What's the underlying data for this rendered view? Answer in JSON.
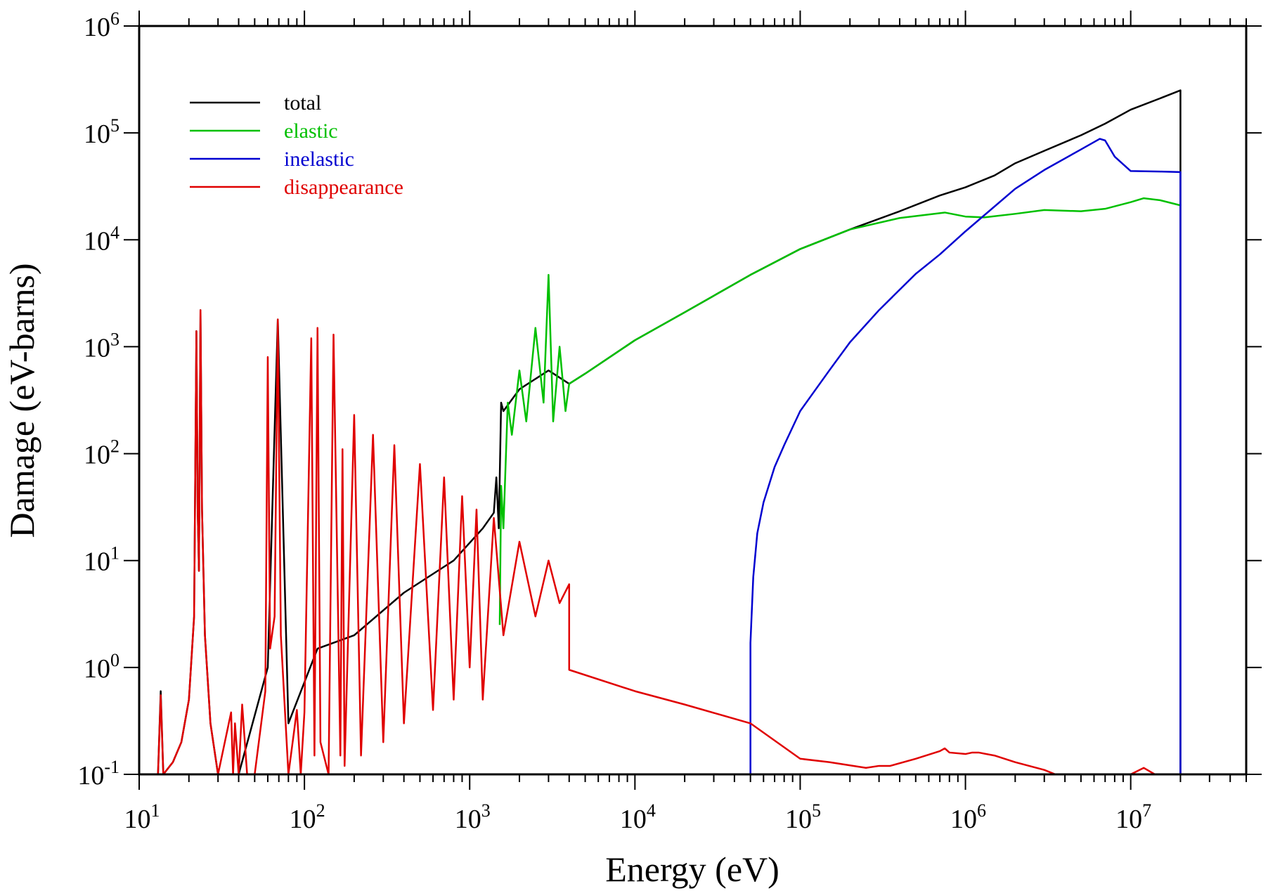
{
  "chart_data": {
    "type": "line",
    "title": "",
    "xlabel": "Energy (eV)",
    "ylabel": "Damage (eV-barns)",
    "xscale": "log",
    "yscale": "log",
    "xlim": [
      10,
      50000000
    ],
    "ylim": [
      0.1,
      1000000
    ],
    "grid": false,
    "legend_position": "top-left",
    "x_tick_labels": [
      {
        "value": 10,
        "base": "10",
        "exp": "1"
      },
      {
        "value": 100,
        "base": "10",
        "exp": "2"
      },
      {
        "value": 1000,
        "base": "10",
        "exp": "3"
      },
      {
        "value": 10000,
        "base": "10",
        "exp": "4"
      },
      {
        "value": 100000,
        "base": "10",
        "exp": "5"
      },
      {
        "value": 1000000,
        "base": "10",
        "exp": "6"
      },
      {
        "value": 10000000,
        "base": "10",
        "exp": "7"
      }
    ],
    "y_tick_labels": [
      {
        "value": 0.1,
        "base": "10",
        "exp": "-1"
      },
      {
        "value": 1,
        "base": "10",
        "exp": "0"
      },
      {
        "value": 10,
        "base": "10",
        "exp": "1"
      },
      {
        "value": 100,
        "base": "10",
        "exp": "2"
      },
      {
        "value": 1000,
        "base": "10",
        "exp": "3"
      },
      {
        "value": 10000,
        "base": "10",
        "exp": "4"
      },
      {
        "value": 100000,
        "base": "10",
        "exp": "5"
      },
      {
        "value": 1000000,
        "base": "10",
        "exp": "6"
      }
    ],
    "series": [
      {
        "name": "total",
        "color": "#000000",
        "x": [
          13,
          13.5,
          14,
          16,
          18,
          20,
          21.5,
          22.2,
          22.6,
          23,
          23.5,
          24,
          25,
          27,
          30,
          40,
          60,
          69,
          80,
          120,
          200,
          400,
          800,
          1200,
          1400,
          1450,
          1500,
          1550,
          1600,
          2000,
          3000,
          4000,
          5000,
          10000,
          20000,
          50000,
          100000,
          200000,
          400000,
          700000,
          1000000,
          1500000,
          2000000,
          3000000,
          5000000,
          7000000,
          10000000,
          15000000,
          20000000,
          20000000
        ],
        "y": [
          0.1,
          0.6,
          0.1,
          0.13,
          0.2,
          0.5,
          3,
          1400,
          30,
          8,
          2200,
          30,
          2,
          0.3,
          0.1,
          0.1,
          1.0,
          1800,
          0.3,
          1.5,
          2.0,
          5.0,
          10.0,
          20,
          28,
          60,
          20,
          300,
          250,
          400,
          600,
          450,
          560,
          1150,
          2100,
          4700,
          8200,
          12500,
          18500,
          26000,
          31000,
          40000,
          52000,
          68000,
          95000,
          122000,
          165000,
          210000,
          250000,
          0.1
        ]
      },
      {
        "name": "elastic",
        "color": "#00c000",
        "x": [
          1520,
          1550,
          1600,
          1700,
          1800,
          2000,
          2200,
          2500,
          2800,
          3000,
          3200,
          3500,
          3800,
          4000,
          5000,
          10000,
          20000,
          50000,
          100000,
          200000,
          400000,
          750000,
          1000000,
          1300000,
          2000000,
          3000000,
          5000000,
          7000000,
          10000000,
          12000000,
          15000000,
          20000000
        ],
        "y": [
          2.5,
          50,
          20,
          300,
          150,
          600,
          200,
          1500,
          300,
          4700,
          200,
          1000,
          250,
          450,
          560,
          1150,
          2100,
          4700,
          8200,
          12500,
          16000,
          18000,
          16500,
          16200,
          17500,
          19000,
          18500,
          19500,
          22500,
          24500,
          23500,
          21000
        ]
      },
      {
        "name": "inelastic",
        "color": "#0000d0",
        "x": [
          50000,
          50000,
          52000,
          55000,
          60000,
          70000,
          80000,
          100000,
          150000,
          200000,
          300000,
          500000,
          700000,
          1000000,
          2000000,
          3000000,
          5000000,
          6500000,
          7000000,
          8000000,
          10000000,
          15000000,
          20000000,
          20000000
        ],
        "y": [
          0.1,
          1.7,
          7,
          18,
          35,
          75,
          120,
          250,
          600,
          1100,
          2200,
          4800,
          7300,
          12000,
          30000,
          45000,
          70000,
          88000,
          85000,
          60000,
          44000,
          43500,
          43000,
          0.1
        ]
      },
      {
        "name": "disappearance",
        "color": "#e00000",
        "x": [
          13,
          13.5,
          14,
          16,
          18,
          20,
          21.5,
          22.2,
          22.6,
          23,
          23.5,
          24,
          25,
          27,
          30,
          36,
          37,
          38,
          40,
          42,
          45,
          50,
          58,
          60,
          62,
          66,
          69,
          72,
          80,
          90,
          95,
          100,
          110,
          115,
          120,
          125,
          140,
          150,
          165,
          170,
          175,
          200,
          220,
          260,
          300,
          350,
          400,
          500,
          600,
          700,
          800,
          900,
          1000,
          1100,
          1200,
          1400,
          1600,
          2000,
          2500,
          3000,
          3500,
          4000,
          4000,
          10000,
          20000,
          50000,
          100000,
          150000,
          250000,
          300000,
          350000,
          500000,
          700000,
          750000,
          800000,
          1000000,
          1100000,
          1200000,
          1500000,
          2000000,
          3000000,
          3500000,
          10000000,
          12000000,
          14000000
        ],
        "y": [
          0.1,
          0.55,
          0.1,
          0.13,
          0.2,
          0.5,
          3,
          1400,
          30,
          8,
          2200,
          30,
          2,
          0.3,
          0.1,
          0.38,
          0.1,
          0.3,
          0.1,
          0.45,
          0.1,
          0.1,
          0.6,
          800,
          1.5,
          3,
          1800,
          2,
          0.1,
          0.4,
          0.1,
          0.38,
          1200,
          0.15,
          1500,
          0.2,
          0.1,
          1300,
          0.15,
          110,
          0.12,
          230,
          0.15,
          150,
          0.2,
          120,
          0.3,
          80,
          0.4,
          60,
          0.5,
          40,
          1,
          30,
          0.5,
          25,
          2,
          15,
          3,
          10,
          4,
          6,
          0.95,
          0.6,
          0.45,
          0.3,
          0.14,
          0.13,
          0.115,
          0.12,
          0.12,
          0.14,
          0.165,
          0.175,
          0.16,
          0.155,
          0.16,
          0.16,
          0.15,
          0.13,
          0.11,
          0.1,
          0.1,
          0.115,
          0.1
        ]
      }
    ]
  }
}
